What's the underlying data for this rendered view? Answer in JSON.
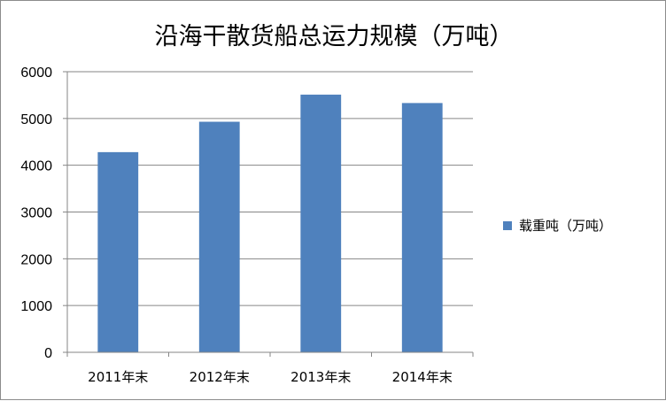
{
  "chart_data": {
    "type": "bar",
    "title": "沿海干散货船总运力规模（万吨）",
    "categories": [
      "2011年末",
      "2012年末",
      "2013年末",
      "2014年末"
    ],
    "series": [
      {
        "name": "载重吨（万吨）",
        "values": [
          4280,
          4930,
          5510,
          5330
        ]
      }
    ],
    "xlabel": "",
    "ylabel": "",
    "ylim": [
      0,
      6000
    ],
    "yticks": [
      0,
      1000,
      2000,
      3000,
      4000,
      5000,
      6000
    ],
    "grid": true,
    "legend_position": "right",
    "bar_color": "#4f81bd",
    "grid_color": "#868686"
  }
}
